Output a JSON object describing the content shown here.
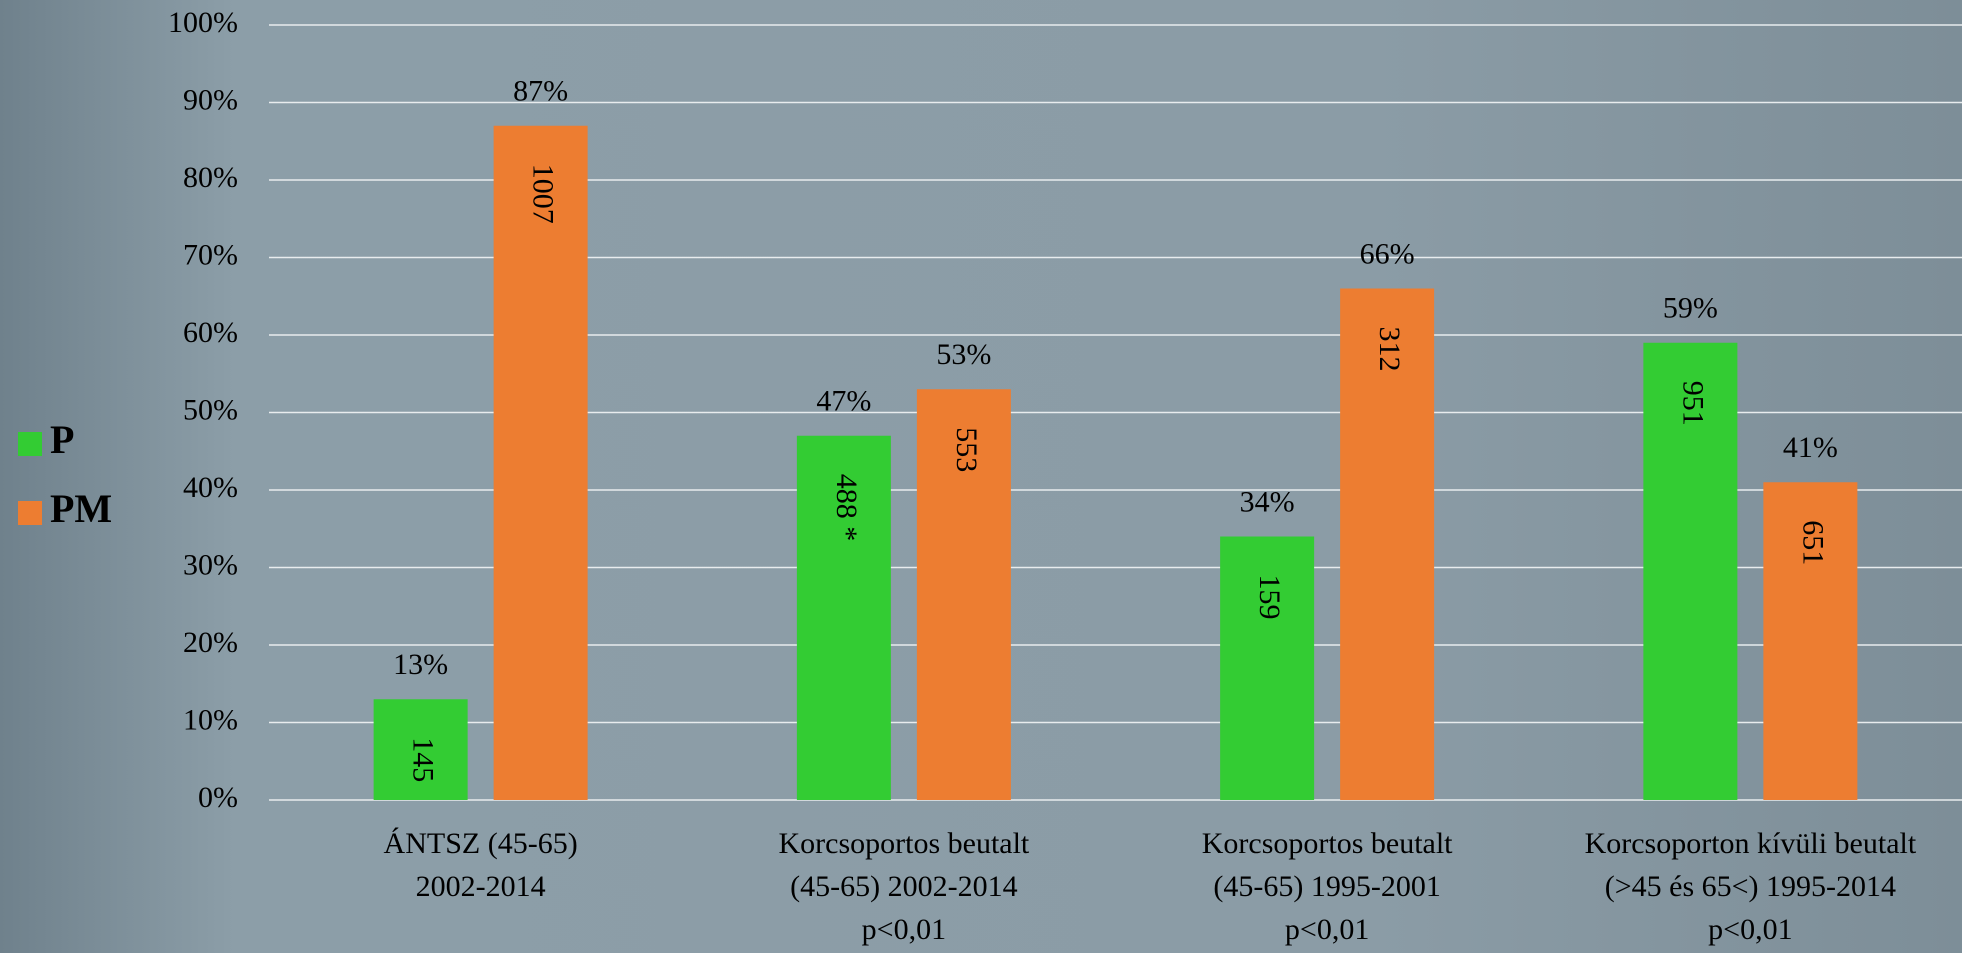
{
  "chart_data": {
    "type": "bar",
    "categories": [
      [
        "ÁNTSZ (45-65)",
        "2002-2014"
      ],
      [
        "Korcsoportos beutalt",
        "(45-65) 2002-2014",
        "p<0,01"
      ],
      [
        "Korcsoportos beutalt",
        "(45-65) 1995-2001",
        "p<0,01"
      ],
      [
        "Korcsoporton kívüli beutalt",
        "(>45 és 65<) 1995-2014",
        "p<0,01"
      ]
    ],
    "series": [
      {
        "name": "P",
        "color": "#33cc33",
        "values": [
          13,
          47,
          34,
          59
        ],
        "value_labels": [
          "13%",
          "47%",
          "34%",
          "59%"
        ],
        "bar_labels": [
          "145",
          "488 *",
          "159",
          "951"
        ]
      },
      {
        "name": "PM",
        "color": "#ed7d31",
        "values": [
          87,
          53,
          66,
          41
        ],
        "value_labels": [
          "87%",
          "53%",
          "66%",
          "41%"
        ],
        "bar_labels": [
          "1007",
          "553",
          "312",
          "651"
        ]
      }
    ],
    "ylim": [
      0,
      100
    ],
    "yticks": [
      {
        "value": 0,
        "label": "0%"
      },
      {
        "value": 10,
        "label": "10%"
      },
      {
        "value": 20,
        "label": "20%"
      },
      {
        "value": 30,
        "label": "30%"
      },
      {
        "value": 40,
        "label": "40%"
      },
      {
        "value": 50,
        "label": "50%"
      },
      {
        "value": 60,
        "label": "60%"
      },
      {
        "value": 70,
        "label": "70%"
      },
      {
        "value": 80,
        "label": "80%"
      },
      {
        "value": 90,
        "label": "90%"
      },
      {
        "value": 100,
        "label": "100%"
      }
    ],
    "grid": true,
    "legend": "left"
  }
}
